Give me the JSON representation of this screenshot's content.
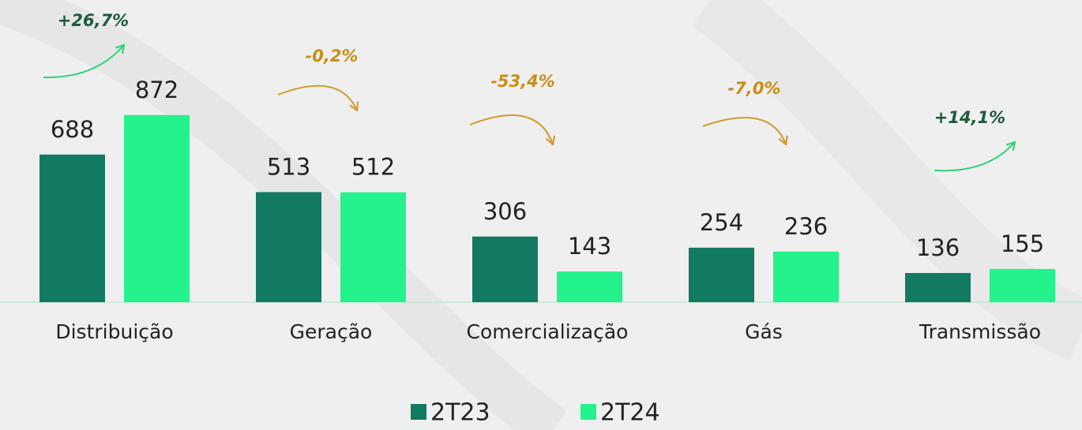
{
  "chart_data": {
    "type": "bar",
    "categories": [
      "Distribuição",
      "Geração",
      "Comercialização",
      "Gás",
      "Transmissão"
    ],
    "series": [
      {
        "name": "2T23",
        "color": "#137a62",
        "values": [
          688,
          513,
          306,
          254,
          136
        ]
      },
      {
        "name": "2T24",
        "color": "#24f28d",
        "values": [
          872,
          512,
          143,
          236,
          155
        ]
      }
    ],
    "annotations": [
      {
        "text": "+26,7%",
        "color": "#1e5a3c",
        "arrow_color": "#2ad27a"
      },
      {
        "text": "-0,2%",
        "color": "#c88f14",
        "arrow_color": "#d19a2a"
      },
      {
        "text": "-53,4%",
        "color": "#c88f14",
        "arrow_color": "#d19a2a"
      },
      {
        "text": "-7,0%",
        "color": "#c88f14",
        "arrow_color": "#d19a2a"
      },
      {
        "text": "+14,1%",
        "color": "#1e5a3c",
        "arrow_color": "#2ad27a"
      }
    ],
    "legend": "bottom"
  }
}
